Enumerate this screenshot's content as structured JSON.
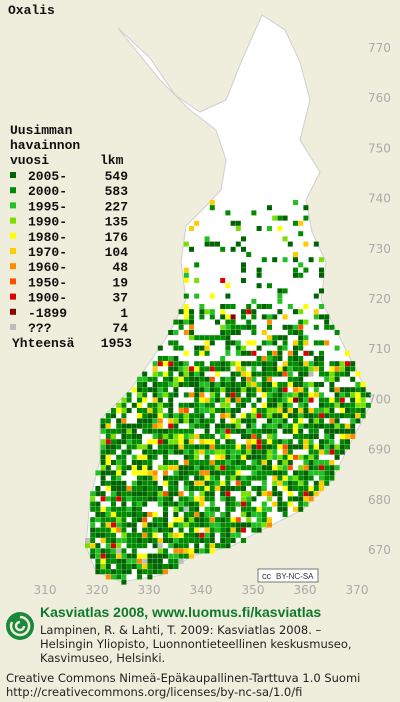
{
  "title": "Oxalis",
  "legend": {
    "heading": [
      "Uusimman",
      "havainnon",
      "vuosi"
    ],
    "count_heading": "lkm",
    "items": [
      {
        "label": "2005-",
        "count": 549,
        "color": "#006400"
      },
      {
        "label": "2000-",
        "count": 583,
        "color": "#008a00"
      },
      {
        "label": "1995-",
        "count": 227,
        "color": "#22c022"
      },
      {
        "label": "1990-",
        "count": 135,
        "color": "#77e000"
      },
      {
        "label": "1980-",
        "count": 176,
        "color": "#ffff00"
      },
      {
        "label": "1970-",
        "count": 104,
        "color": "#ffcc00"
      },
      {
        "label": "1960-",
        "count": 48,
        "color": "#ff8c00"
      },
      {
        "label": "1950-",
        "count": 19,
        "color": "#ff5000"
      },
      {
        "label": "1900-",
        "count": 37,
        "color": "#dd0000"
      },
      {
        "label": "-1899",
        "count": 1,
        "color": "#880000"
      },
      {
        "label": "???",
        "count": 74,
        "color": "#bdbdbd"
      }
    ],
    "total_label": "Yhteensä",
    "total": 1953
  },
  "map": {
    "xticks": [
      310,
      320,
      330,
      340,
      350,
      360,
      370
    ],
    "yticks": [
      770,
      760,
      750,
      740,
      730,
      720,
      710,
      700,
      690,
      680,
      670
    ],
    "license_badge": "BY-NC-SA",
    "badge_cc": "cc"
  },
  "footer": {
    "heading": "Kasviatlas 2008, www.luomus.fi/kasviatlas",
    "citation": [
      "Lampinen, R. & Lahti, T. 2009: Kasviatlas 2008. –",
      "Helsingin Yliopisto, Luonnontieteellinen keskusmuseo,",
      "Kasvimuseo, Helsinki."
    ],
    "license": [
      "Creative Commons Nimeä-Epäkaupallinen-Tarttuva 1.0 Suomi",
      "http://creativecommons.org/licenses/by-nc-sa/1.0/fi"
    ]
  }
}
